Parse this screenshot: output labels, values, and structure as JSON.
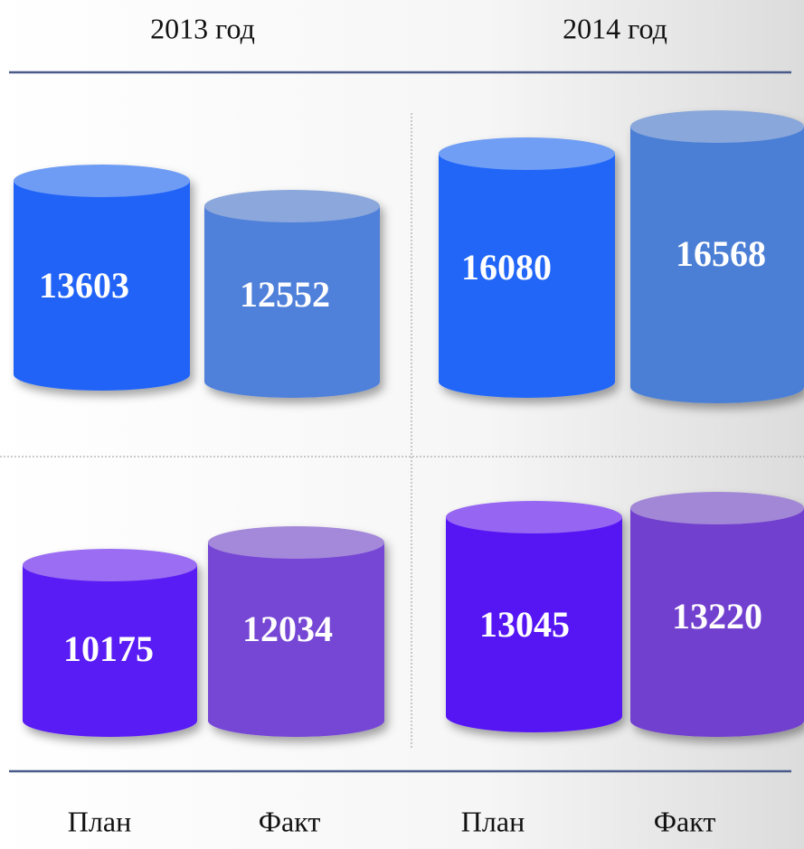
{
  "header": {
    "years": [
      "2013 год",
      "2014 год"
    ]
  },
  "rows": [
    {
      "values": [
        "13603",
        "12552",
        "16080",
        "16568"
      ]
    },
    {
      "values": [
        "10175",
        "12034",
        "13045",
        "13220"
      ]
    }
  ],
  "footer": {
    "labels": [
      "План",
      "Факт",
      "План",
      "Факт"
    ]
  }
}
